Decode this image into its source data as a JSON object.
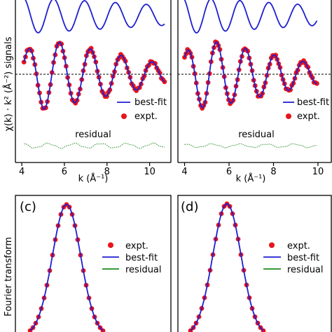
{
  "figure": {
    "shared_ylabel_top": "χ(k) · k² (Å⁻²) signals",
    "shared_ylabel_bottom": "Fourier transform"
  },
  "colors": {
    "bestfit": "#1f1fd1",
    "expt": "#e8141c",
    "residual": "#1f8a1f",
    "axis": "#000000",
    "zero_line": "#000000"
  },
  "chart_data": [
    {
      "panel": "a",
      "type": "line",
      "xlabel": "k (Å⁻¹)",
      "ylabel": "χ(k) · k² (Å⁻²) signals",
      "xlim": [
        3.7,
        11.0
      ],
      "xticks": [
        "4",
        "6",
        "8",
        "10"
      ],
      "xtick_values": [
        4,
        6,
        8,
        10
      ],
      "grid": false,
      "legend": {
        "placement": "lower-right",
        "entries": [
          "best-fit",
          "expt."
        ]
      },
      "annotations": [
        "residual"
      ],
      "series": [
        {
          "name": "best-fit",
          "style": "line",
          "k_range": [
            4.1,
            10.7
          ],
          "k_period": 1.45,
          "phase": 0.6,
          "amplitude": [
            1.0,
            0.25
          ]
        },
        {
          "name": "expt.",
          "style": "dots",
          "k_range": [
            4.1,
            10.7
          ],
          "k_period": 1.45,
          "phase": 0.6,
          "amplitude": [
            1.0,
            0.25
          ]
        },
        {
          "name": "residual",
          "style": "dots",
          "k_range": [
            4.1,
            10.7
          ],
          "amplitude": [
            0.08,
            0.04
          ]
        }
      ]
    },
    {
      "panel": "b",
      "type": "line",
      "xlabel": "k (Å⁻¹)",
      "xlim": [
        3.7,
        10.6
      ],
      "xticks": [
        "4",
        "6",
        "8",
        "10"
      ],
      "xtick_values": [
        4,
        6,
        8,
        10
      ],
      "grid": false,
      "legend": {
        "placement": "lower-right",
        "entries": [
          "best-fit",
          "expt."
        ]
      },
      "annotations": [
        "residual"
      ],
      "series": [
        {
          "name": "best-fit",
          "style": "line",
          "k_range": [
            4.0,
            9.95
          ],
          "k_period": 1.3,
          "phase": 0.9,
          "amplitude": [
            1.0,
            0.25
          ]
        },
        {
          "name": "expt.",
          "style": "dots",
          "k_range": [
            4.0,
            9.95
          ],
          "k_period": 1.3,
          "phase": 0.9,
          "amplitude": [
            1.0,
            0.25
          ]
        },
        {
          "name": "residual",
          "style": "dots",
          "k_range": [
            4.0,
            9.95
          ],
          "amplitude": [
            0.06,
            0.03
          ]
        }
      ]
    },
    {
      "panel": "c",
      "type": "line",
      "ylabel": "Fourier transform",
      "legend": {
        "placement": "upper-right",
        "entries": [
          "expt.",
          "best-fit",
          "residual"
        ]
      },
      "series": [
        {
          "name": "expt.",
          "style": "dots"
        },
        {
          "name": "best-fit",
          "style": "line"
        },
        {
          "name": "residual",
          "style": "line"
        }
      ]
    },
    {
      "panel": "d",
      "type": "line",
      "legend": {
        "placement": "upper-right",
        "entries": [
          "expt.",
          "best-fit",
          "residual"
        ]
      },
      "series": [
        {
          "name": "expt.",
          "style": "dots"
        },
        {
          "name": "best-fit",
          "style": "line"
        },
        {
          "name": "residual",
          "style": "line"
        }
      ]
    }
  ],
  "panels": {
    "a": {
      "xlabel": "k (Å⁻¹)",
      "legend_bestfit": "best-fit",
      "legend_expt": "expt.",
      "residual_label": "residual",
      "ticks": [
        "4",
        "6",
        "8",
        "10"
      ]
    },
    "b": {
      "xlabel": "k (Å⁻¹)",
      "legend_bestfit": "best-fit",
      "legend_expt": "expt.",
      "residual_label": "residual",
      "ticks": [
        "4",
        "6",
        "8",
        "10"
      ]
    },
    "c": {
      "letter": "(c)",
      "legend_expt": "expt.",
      "legend_bestfit": "best-fit",
      "legend_residual": "residual"
    },
    "d": {
      "letter": "(d)",
      "legend_expt": "expt.",
      "legend_bestfit": "best-fit",
      "legend_residual": "residual"
    }
  }
}
